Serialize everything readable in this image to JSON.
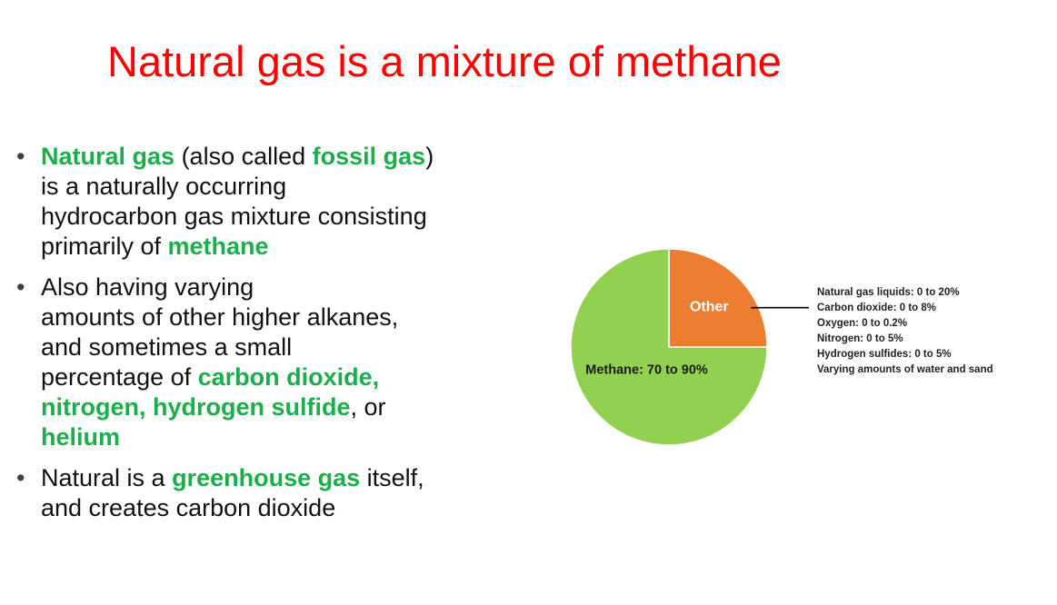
{
  "slide": {
    "title": "Natural gas is a mixture of methane",
    "bullet_marker": "•",
    "bullets": [
      {
        "parts": [
          {
            "text": "Natural gas",
            "style": "green"
          },
          {
            "text": " (also called ",
            "style": "normal"
          },
          {
            "text": "fossil gas",
            "style": "green"
          },
          {
            "text": ")\nis a naturally occurring\nhydrocarbon gas mixture consisting\nprimarily of ",
            "style": "normal"
          },
          {
            "text": "methane",
            "style": "green"
          }
        ]
      },
      {
        "parts": [
          {
            "text": "Also having varying\namounts of other higher alkanes,\nand sometimes a small\npercentage of ",
            "style": "normal"
          },
          {
            "text": "carbon dioxide,\nnitrogen, hydrogen sulfide",
            "style": "green"
          },
          {
            "text": ", or\n",
            "style": "normal"
          },
          {
            "text": "helium",
            "style": "green"
          }
        ]
      },
      {
        "parts": [
          {
            "text": "Natural is a ",
            "style": "normal"
          },
          {
            "text": "greenhouse gas",
            "style": "green"
          },
          {
            "text": " itself,\nand creates carbon dioxide",
            "style": "normal"
          }
        ]
      }
    ]
  },
  "colors": {
    "title": "#ff0000",
    "highlight": "#1aaf4b",
    "methane": "#92d050",
    "other": "#ed7d31",
    "leader_line": "#000000"
  },
  "chart_data": {
    "type": "pie",
    "title": "",
    "start_angle_deg": 0,
    "direction": "clockwise",
    "slices": [
      {
        "label": "Other",
        "value": 25,
        "color": "#ed7d31",
        "label_color": "#ffffff"
      },
      {
        "label": "Methane: 70 to 90%",
        "value": 75,
        "color": "#92d050",
        "label_color": "#1a1a1a"
      }
    ],
    "callout": {
      "slice": "Other",
      "lines": [
        "Natural gas liquids: 0 to 20%",
        "Carbon dioxide: 0 to 8%",
        "Oxygen: 0 to 0.2%",
        "Nitrogen: 0 to 5%",
        "Hydrogen sulfides: 0 to 5%",
        "Varying amounts of water and sand"
      ]
    }
  }
}
